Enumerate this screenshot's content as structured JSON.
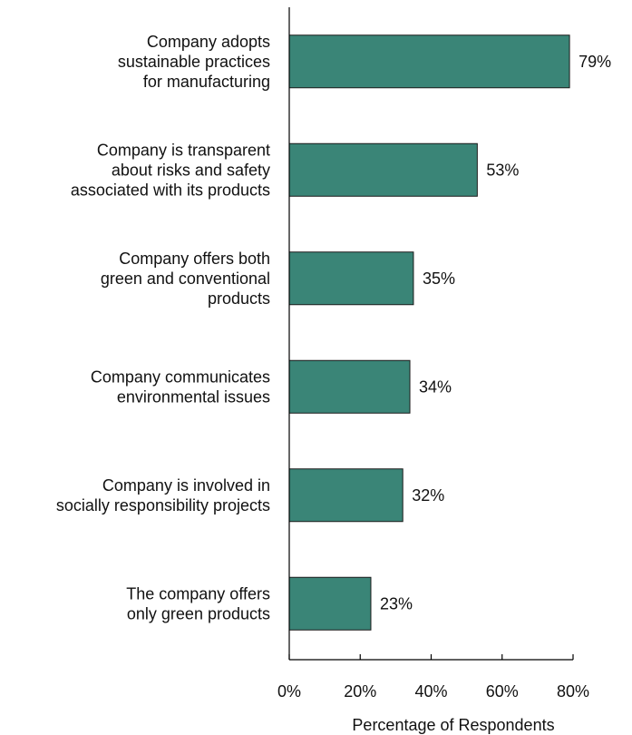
{
  "chart_data": {
    "type": "bar",
    "orientation": "horizontal",
    "categories": [
      [
        "Company adopts",
        "sustainable practices",
        "for manufacturing"
      ],
      [
        "Company is transparent",
        "about risks and safety",
        "associated with its products"
      ],
      [
        "Company offers both",
        "green and conventional",
        "products"
      ],
      [
        "Company communicates",
        "environmental issues"
      ],
      [
        "Company is involved in",
        "socially responsibility projects"
      ],
      [
        "The company offers",
        "only green products"
      ]
    ],
    "values": [
      79,
      53,
      35,
      34,
      32,
      23
    ],
    "value_labels": [
      "79%",
      "53%",
      "35%",
      "34%",
      "32%",
      "23%"
    ],
    "xlabel": "Percentage of Respondents",
    "ylabel": "",
    "title": "",
    "xlim": [
      0,
      80
    ],
    "xticks": [
      0,
      20,
      40,
      60,
      80
    ],
    "xtick_labels": [
      "0%",
      "20%",
      "40%",
      "60%",
      "80%"
    ],
    "grid": false,
    "bar_color": "#3a8577",
    "bar_edge_color": "#1a1a1a"
  }
}
